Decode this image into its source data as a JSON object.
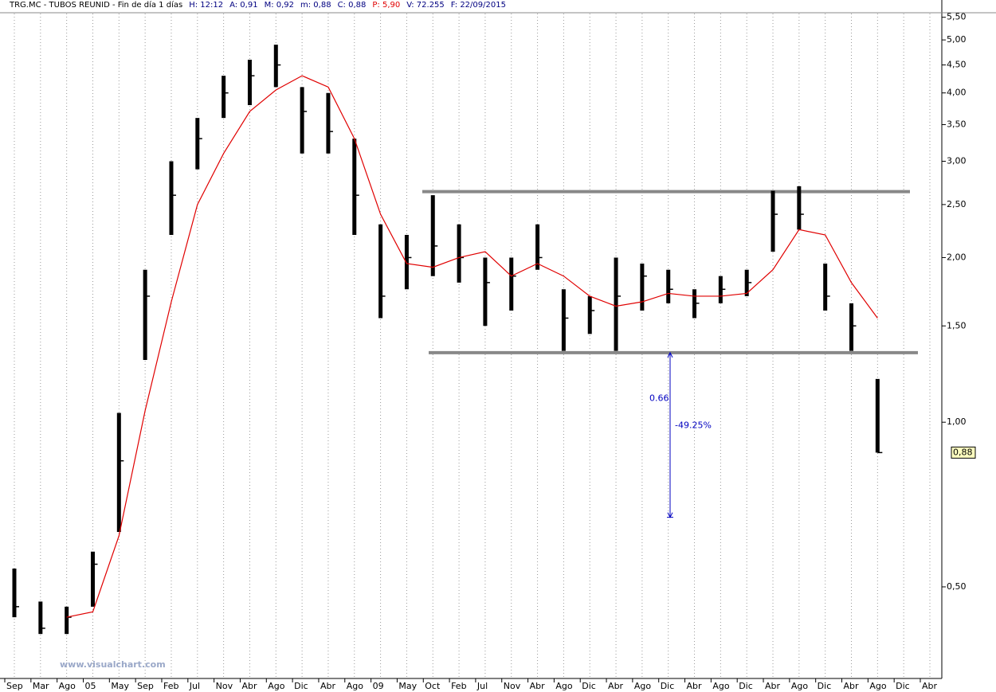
{
  "chart_data": {
    "type": "ohlc",
    "title": "TRG.MC - TUBOS REUNID - Fin de día 1 días",
    "header_fields": [
      "H: 12:12",
      "A: 0,91",
      "M: 0,92",
      "m: 0,88",
      "C: 0,88",
      "P: 5,90",
      "V: 72.255",
      "F: 22/09/2015"
    ],
    "categories": [
      "Sep",
      "Mar",
      "Ago",
      "05",
      "May",
      "Sep",
      "Feb",
      "Jul",
      "Nov",
      "Abr",
      "Ago",
      "Dic",
      "Abr",
      "Ago",
      "09",
      "May",
      "Oct",
      "Feb",
      "Jul",
      "Nov",
      "Abr",
      "Ago",
      "Dic",
      "Abr",
      "Ago",
      "Dic",
      "Abr",
      "Ago",
      "Dic",
      "Abr",
      "Ago",
      "Dic",
      "Abr",
      "Ago",
      "Dic",
      "Abr"
    ],
    "series": [
      {
        "name": "Precio",
        "color": "#000000",
        "high": [
          0.54,
          0.47,
          0.46,
          0.58,
          1.04,
          1.9,
          3.0,
          3.6,
          4.3,
          4.6,
          4.9,
          4.1,
          4.0,
          3.3,
          2.3,
          2.2,
          2.6,
          2.3,
          2.0,
          2.0,
          2.3,
          1.75,
          1.7,
          2.0,
          1.95,
          1.9,
          1.75,
          1.85,
          1.9,
          2.65,
          2.7,
          1.95,
          1.65,
          1.2,
          null,
          null
        ],
        "low": [
          0.44,
          0.41,
          0.41,
          0.46,
          0.63,
          1.3,
          2.2,
          2.9,
          3.6,
          3.8,
          4.1,
          3.1,
          3.1,
          2.2,
          1.55,
          1.75,
          1.85,
          1.8,
          1.5,
          1.6,
          1.9,
          1.35,
          1.45,
          1.35,
          1.6,
          1.65,
          1.55,
          1.65,
          1.7,
          2.05,
          2.25,
          1.6,
          1.35,
          0.88,
          null,
          null
        ],
        "values": [
          0.46,
          0.42,
          0.44,
          0.55,
          0.85,
          1.7,
          2.6,
          3.3,
          4.0,
          4.3,
          4.5,
          3.7,
          3.4,
          2.6,
          1.7,
          2.0,
          2.1,
          2.0,
          1.8,
          1.85,
          2.0,
          1.55,
          1.6,
          1.7,
          1.85,
          1.75,
          1.65,
          1.75,
          1.8,
          2.4,
          2.4,
          1.7,
          1.5,
          0.88,
          null,
          null
        ]
      },
      {
        "name": "Media",
        "color": "#e00000",
        "values": [
          null,
          null,
          0.44,
          0.45,
          0.62,
          1.05,
          1.66,
          2.5,
          3.1,
          3.7,
          4.05,
          4.3,
          4.1,
          3.3,
          2.4,
          1.95,
          1.92,
          2.0,
          2.05,
          1.85,
          1.95,
          1.85,
          1.7,
          1.63,
          1.66,
          1.72,
          1.7,
          1.7,
          1.72,
          1.9,
          2.25,
          2.2,
          1.8,
          1.55,
          null,
          null
        ]
      }
    ],
    "log_scale": true,
    "ylim": [
      0.34,
      5.72
    ],
    "yticks": [
      {
        "value": 0.5,
        "label": "0,50"
      },
      {
        "value": 1,
        "label": "1,00"
      },
      {
        "value": 1.5,
        "label": "1,50"
      },
      {
        "value": 2,
        "label": "2,00"
      },
      {
        "value": 2.5,
        "label": "2,50"
      },
      {
        "value": 3,
        "label": "3,00"
      },
      {
        "value": 3.5,
        "label": "3,50"
      },
      {
        "value": 4,
        "label": "4,00"
      },
      {
        "value": 4.5,
        "label": "4,50"
      },
      {
        "value": 5,
        "label": "5,00"
      },
      {
        "value": 5.5,
        "label": "5,50"
      }
    ],
    "levels": [
      2.64,
      1.34
    ],
    "arrow": {
      "from": 1.34,
      "to": 0.67,
      "label": "0.66",
      "pct_label": "-49.25%"
    },
    "last_price": {
      "value": 0.88,
      "label": "0,88"
    },
    "watermark": "www.visualchart.com"
  }
}
